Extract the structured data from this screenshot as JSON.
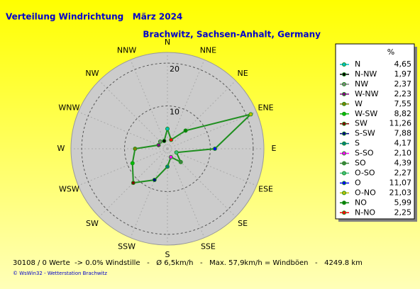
{
  "chart_data": {
    "type": "windrose",
    "title": "Verteilung Windrichtung   März 2024",
    "subtitle": "Brachwitz, Sachsen-Anhalt, Germany",
    "axis_labels": [
      "N",
      "NNE",
      "NE",
      "ENE",
      "E",
      "ESE",
      "SE",
      "SSE",
      "S",
      "SSW",
      "SW",
      "WSW",
      "W",
      "WNW",
      "NW",
      "NNW"
    ],
    "rlim": [
      0,
      22.5
    ],
    "rticks": [
      10,
      20
    ],
    "legend_header": "%",
    "categories": [
      "N",
      "N-NW",
      "NW",
      "W-NW",
      "W",
      "W-SW",
      "SW",
      "S-SW",
      "S",
      "S-SO",
      "SO",
      "O-SO",
      "O",
      "O-NO",
      "NO",
      "N-NO"
    ],
    "values": [
      4.65,
      1.97,
      2.37,
      2.23,
      7.55,
      8.82,
      11.26,
      7.88,
      4.17,
      2.1,
      4.39,
      2.27,
      11.07,
      21.03,
      5.99,
      2.25
    ],
    "value_labels": [
      "4,65",
      "1,97",
      "2,37",
      "2,23",
      "7,55",
      "8,82",
      "11,26",
      "7,88",
      "4,17",
      "2,10",
      "4,39",
      "2,27",
      "11,07",
      "21,03",
      "5,99",
      "2,25"
    ],
    "line_color": "#1f8f1f",
    "marker_colors": [
      "#00c0c0",
      "#000000",
      "#808080",
      "#800080",
      "#808000",
      "#00c000",
      "#800000",
      "#000080",
      "#008080",
      "#ff00ff",
      "#408040",
      "#40c080",
      "#0000ff",
      "#c0c000",
      "#008000",
      "#ff0000"
    ],
    "footer": "30108 / 0 Werte  -> 0.0% Windstille   -   Ø 6,5km/h   -   Max. 57,9km/h = Windböen   -   4249.8 km",
    "credit": "© WsWin32  -  Wetterstation Brachwitz"
  }
}
